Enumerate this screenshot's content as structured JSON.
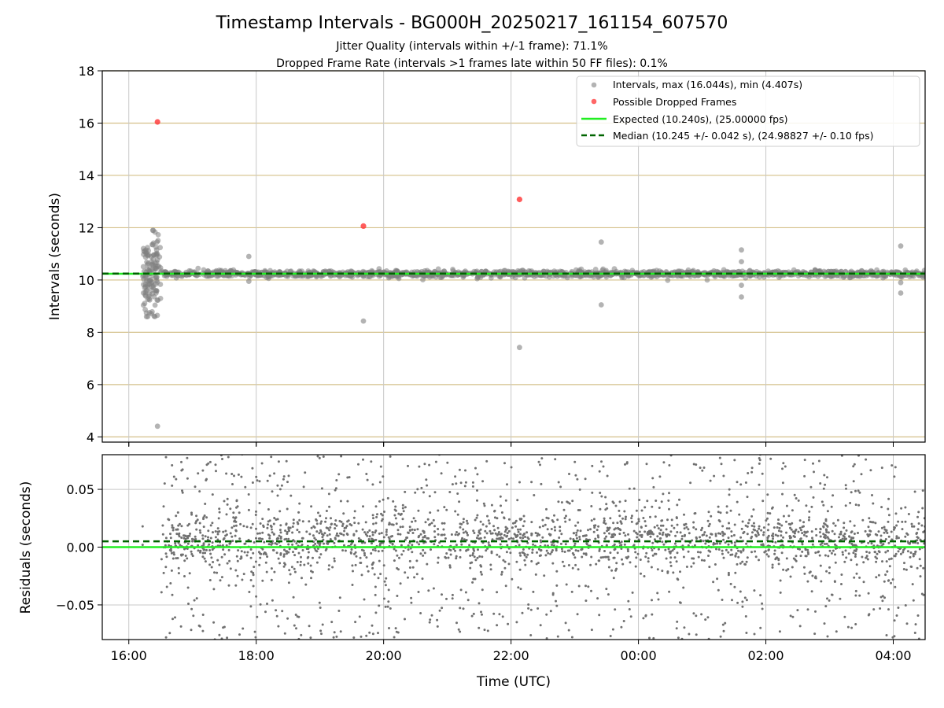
{
  "figure": {
    "title": "Timestamp Intervals - BG000H_20250217_161154_607570",
    "subtitle_1": "Jitter Quality (intervals within +/-1 frame): 71.1%",
    "subtitle_2": "Dropped Frame Rate (intervals >1 frames late within 50 FF files): 0.1%",
    "xlabel": "Time (UTC)"
  },
  "colors": {
    "intervals": "#808080",
    "dropped": "#ff3333",
    "expected": "#22ee22",
    "median": "#006400",
    "hgrid": "#d4c08a",
    "vgrid": "#c8c8c8"
  },
  "chart_data": [
    {
      "type": "scatter",
      "name": "intervals",
      "ylabel": "Intervals (seconds)",
      "xlim": [
        "15:35",
        "04:30"
      ],
      "ylim": [
        3.8,
        18
      ],
      "x_ticks": [
        "16:00",
        "18:00",
        "20:00",
        "22:00",
        "00:00",
        "02:00",
        "04:00"
      ],
      "y_ticks": [
        4,
        6,
        8,
        10,
        12,
        14,
        16,
        18
      ],
      "grid": true,
      "legend_position": "top-right",
      "legend": [
        "Intervals, max (16.044s), min (4.407s)",
        "Possible Dropped Frames",
        "Expected (10.240s), (25.00000 fps)",
        "Median (10.245 +/- 0.042 s), (24.98827 +/- 0.10 fps)"
      ],
      "expected_interval": 10.24,
      "median_interval": 10.245,
      "series": [
        {
          "name": "Intervals, max (16.044s), min (4.407s)",
          "color": "#808080",
          "band": {
            "x_start": "16:30",
            "x_end": "04:30",
            "y_center": 10.24,
            "y_spread": 0.12
          },
          "initial_cluster": {
            "x_start": "16:13",
            "x_end": "16:30",
            "y_min": 8.6,
            "y_max": 11.9
          },
          "outliers": [
            {
              "x": "16:27",
              "y": 4.407
            },
            {
              "x": "17:53",
              "y": 10.9
            },
            {
              "x": "17:53",
              "y": 9.95
            },
            {
              "x": "19:41",
              "y": 8.43
            },
            {
              "x": "22:08",
              "y": 7.42
            },
            {
              "x": "23:25",
              "y": 11.45
            },
            {
              "x": "23:25",
              "y": 9.05
            },
            {
              "x": "01:37",
              "y": 11.15
            },
            {
              "x": "01:37",
              "y": 10.7
            },
            {
              "x": "01:37",
              "y": 9.8
            },
            {
              "x": "01:37",
              "y": 9.35
            },
            {
              "x": "04:07",
              "y": 11.3
            },
            {
              "x": "04:07",
              "y": 9.9
            },
            {
              "x": "04:07",
              "y": 9.5
            }
          ]
        },
        {
          "name": "Possible Dropped Frames",
          "color": "#ff3333",
          "points": [
            {
              "x": "16:27",
              "y": 16.044
            },
            {
              "x": "19:41",
              "y": 12.06
            },
            {
              "x": "22:08",
              "y": 13.08
            }
          ]
        }
      ]
    },
    {
      "type": "scatter",
      "name": "residuals",
      "ylabel": "Residuals (seconds)",
      "xlim": [
        "15:35",
        "04:30"
      ],
      "ylim": [
        -0.08,
        0.08
      ],
      "x_ticks": [
        "16:00",
        "18:00",
        "20:00",
        "22:00",
        "00:00",
        "02:00",
        "04:00"
      ],
      "y_ticks": [
        0.05,
        0.0,
        -0.05
      ],
      "y_tick_labels": [
        "0.05",
        "0.00",
        "−0.05"
      ],
      "grid": true,
      "expected_line": 0.0,
      "median_line": 0.005,
      "series": [
        {
          "name": "residuals",
          "color": "#707070",
          "x_start": "16:30",
          "x_end": "04:30",
          "approx_count": 2600,
          "core_std": 0.013,
          "spread_range": [
            -0.08,
            0.08
          ]
        }
      ]
    }
  ]
}
